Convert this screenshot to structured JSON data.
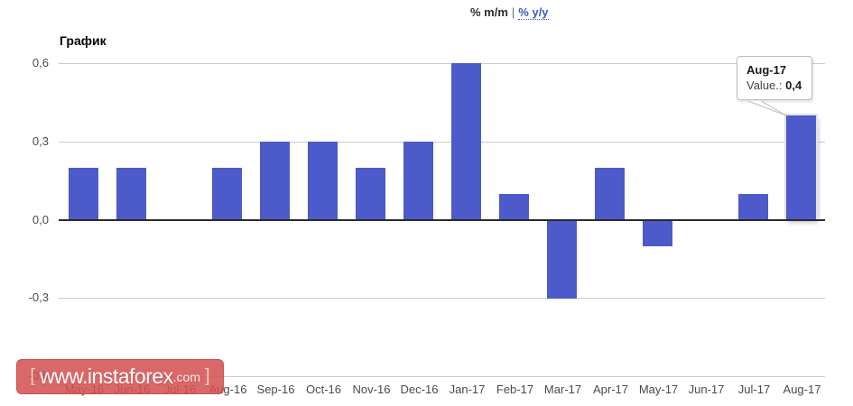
{
  "tabs": {
    "mm_label": "% m/m",
    "separator": "|",
    "yy_label": "% y/y"
  },
  "chart": {
    "title": "График"
  },
  "tooltip": {
    "title": "Aug-17",
    "value_label": "Value.:",
    "value": "0,4"
  },
  "watermark": {
    "bracket_left": "[",
    "text": "www.instaforex",
    "suffix": ".com",
    "bracket_right": "]"
  },
  "chart_data": {
    "type": "bar",
    "title": "График",
    "categories": [
      "May-16",
      "Jun-16",
      "Jul-16",
      "Aug-16",
      "Sep-16",
      "Oct-16",
      "Nov-16",
      "Dec-16",
      "Jan-17",
      "Feb-17",
      "Mar-17",
      "Apr-17",
      "May-17",
      "Jun-17",
      "Jul-17",
      "Aug-17"
    ],
    "values": [
      0.2,
      0.2,
      0,
      0.2,
      0.3,
      0.3,
      0.2,
      0.3,
      0.6,
      0.1,
      -0.3,
      0.2,
      -0.1,
      0,
      0.1,
      0.4
    ],
    "xlabel": "",
    "ylabel": "",
    "ylim": [
      -0.6,
      0.6
    ],
    "ytick_labels": [
      "0,6",
      "0,3",
      "0,0",
      "-0,3",
      "-0,6"
    ],
    "ytick_values": [
      0.6,
      0.3,
      0.0,
      -0.3,
      -0.6
    ],
    "grid": true,
    "legend": "none",
    "bar_color": "#4d5ac9",
    "highlight_index": 15,
    "highlighted_point": {
      "category": "Aug-17",
      "value": 0.4
    }
  }
}
